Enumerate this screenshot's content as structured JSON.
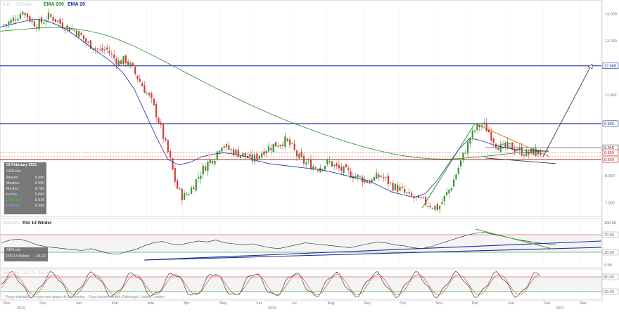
{
  "header": {
    "symbol": "A.D",
    "instrument": "SEM.elis",
    "ema200_label": "EMA 200",
    "ema20_label": "EMA 20",
    "ema200_color": "#2a8a2a",
    "ema20_color": "#1c2e9c"
  },
  "legend": {
    "date": "02 February 2021",
    "symbol": "SEM.elis",
    "rows": [
      {
        "label": "Abierto",
        "value": "8.990"
      },
      {
        "label": "Máximo",
        "value": "8.990"
      },
      {
        "label": "Mínimo",
        "value": "8.780"
      },
      {
        "label": "Fecho",
        "value": "8.860"
      },
      {
        "label": "EMA 200",
        "value": "8.918"
      },
      {
        "label": "EMA 20",
        "value": "8.906"
      }
    ]
  },
  "rsi_panel": {
    "title": "RSI 14 Wilder",
    "symbol": "SEM.elis",
    "legend_label": "RSI 14 Wilder",
    "legend_value": "48.22"
  },
  "stoch_panel": {
    "title": "SEM.elis · S.C. 5 · 15, 5"
  },
  "source_note": "Preço indicativo. Preços com atraso de 15 minutos. · Fuso horário: Dublin, Edinburgh, Lisbon, London",
  "chart_data": [
    {
      "type": "line",
      "subtype": "candlestick",
      "x_tick_labels": [
        "Nov",
        "Dec",
        "Jan",
        "Feb",
        "Mar",
        "Apr",
        "May",
        "Jun",
        "Jul",
        "Aug",
        "Sep",
        "Oct",
        "Nov",
        "Dec",
        "Jan",
        "Feb",
        "Mar"
      ],
      "year_labels": [
        "2019",
        "2020",
        "2021"
      ],
      "y_tick_labels": [
        "14.000",
        "13.000",
        "12.000",
        "11.000",
        "10.000",
        "9.000",
        "8.000",
        "7.000"
      ],
      "ylim": [
        6.6,
        14.4
      ],
      "price_tags": [
        "12.068",
        "9.930",
        "9.040",
        "8.860",
        "8.600"
      ],
      "horizontal_levels": [
        12.068,
        9.93,
        9.04,
        8.86,
        8.6
      ],
      "ohlc_close": [
        13.6,
        13.7,
        13.9,
        14.1,
        13.8,
        13.6,
        13.7,
        13.9,
        13.8,
        13.6,
        13.5,
        13.4,
        13.2,
        12.9,
        12.8,
        12.6,
        12.7,
        12.4,
        12.2,
        12.3,
        12.0,
        11.6,
        11.2,
        10.8,
        10.2,
        9.4,
        8.6,
        7.6,
        7.2,
        7.4,
        7.8,
        8.2,
        8.5,
        8.7,
        9.2,
        9.0,
        8.9,
        8.8,
        8.7,
        8.6,
        8.8,
        9.0,
        9.1,
        9.2,
        9.3,
        9.1,
        8.7,
        8.5,
        8.4,
        8.3,
        8.4,
        8.5,
        8.3,
        8.2,
        8.1,
        8.0,
        7.9,
        7.8,
        7.9,
        8.0,
        7.8,
        7.6,
        7.5,
        7.3,
        7.2,
        7.1,
        7.0,
        6.9,
        6.8,
        7.2,
        7.6,
        8.2,
        8.8,
        9.4,
        9.8,
        9.9,
        9.6,
        9.2,
        9.0,
        9.1,
        9.0,
        8.9,
        8.8,
        8.9,
        8.86
      ],
      "ema200": [
        13.35,
        13.38,
        13.41,
        13.44,
        13.47,
        13.48,
        13.49,
        13.46,
        13.42,
        13.36,
        13.28,
        13.18,
        13.05,
        12.9,
        12.74,
        12.56,
        12.38,
        12.19,
        12.0,
        11.81,
        11.62,
        11.43,
        11.25,
        11.07,
        10.89,
        10.72,
        10.55,
        10.39,
        10.23,
        10.08,
        9.94,
        9.8,
        9.67,
        9.54,
        9.42,
        9.3,
        9.19,
        9.08,
        8.99,
        8.9,
        8.82,
        8.75,
        8.7,
        8.66,
        8.63,
        8.62,
        8.62,
        8.64,
        8.67,
        8.7,
        8.74,
        8.78,
        8.82,
        8.86,
        8.88,
        8.9,
        8.92
      ],
      "ema20": [
        13.5,
        13.6,
        13.7,
        13.8,
        13.75,
        13.6,
        13.4,
        13.1,
        12.8,
        12.5,
        12.2,
        11.8,
        11.2,
        10.3,
        9.4,
        8.6,
        8.4,
        8.5,
        8.7,
        8.8,
        8.85,
        8.8,
        8.7,
        8.55,
        8.45,
        8.4,
        8.35,
        8.3,
        8.25,
        8.2,
        8.1,
        8.0,
        7.9,
        7.8,
        7.6,
        7.4,
        7.3,
        7.2,
        7.35,
        7.8,
        8.4,
        9.0,
        9.4,
        9.3,
        9.15,
        9.05,
        8.98,
        8.95,
        8.93,
        8.906
      ],
      "xlabel": "",
      "ylabel": ""
    },
    {
      "type": "line",
      "name": "RSI 14 Wilder",
      "y_tick_labels": [
        "100.00",
        "70.00",
        "30.00",
        "0.00"
      ],
      "ylim": [
        0,
        100
      ],
      "bands": [
        70,
        30
      ],
      "values": [
        52,
        58,
        60,
        55,
        48,
        44,
        42,
        40,
        38,
        36,
        40,
        35,
        30,
        28,
        34,
        38,
        46,
        52,
        55,
        50,
        48,
        52,
        56,
        54,
        58,
        52,
        50,
        48,
        50,
        46,
        42,
        40,
        44,
        48,
        52,
        50,
        48,
        46,
        44,
        42,
        46,
        50,
        54,
        52,
        48,
        46,
        42,
        40,
        44,
        50,
        56,
        62,
        68,
        72,
        74,
        70,
        66,
        62,
        58,
        55,
        52,
        50,
        48
      ]
    },
    {
      "type": "line",
      "name": "Stochastic",
      "y_tick_labels": [
        "80.00",
        "20.00"
      ],
      "ylim": [
        0,
        100
      ],
      "bands": [
        80,
        20
      ]
    }
  ]
}
